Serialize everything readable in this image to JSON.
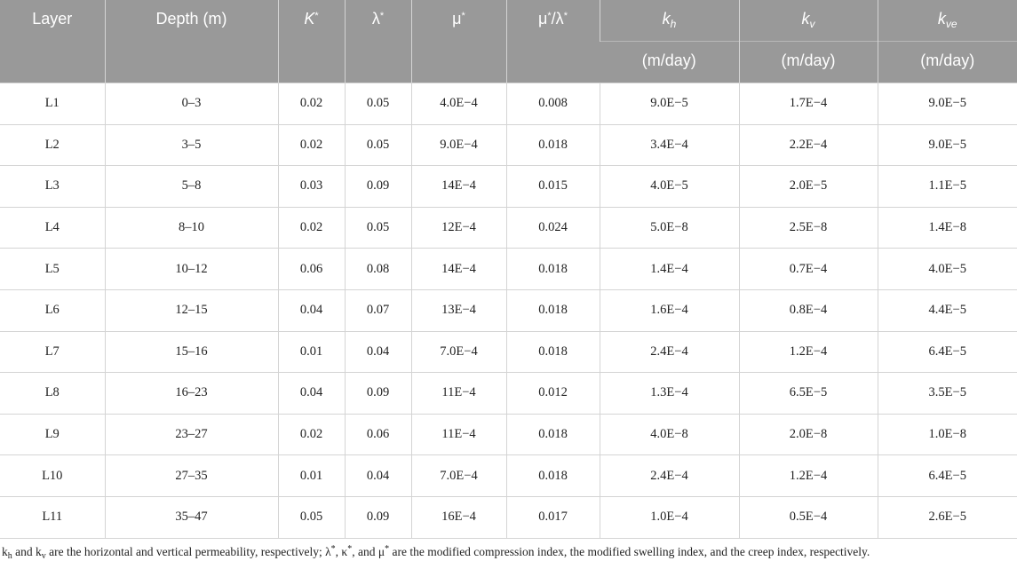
{
  "table": {
    "header": [
      [
        "Layer"
      ],
      [
        "Depth (m)"
      ],
      [
        "K",
        "*"
      ],
      [
        "λ",
        "*"
      ],
      [
        "μ",
        "*"
      ],
      [
        "μ",
        "*",
        "/λ",
        "*"
      ],
      [
        "k",
        "h"
      ],
      [
        "k",
        "v"
      ],
      [
        "k",
        "ve"
      ]
    ],
    "units": [
      "(m/day)",
      "(m/day)",
      "(m/day)"
    ],
    "rows": [
      [
        "L1",
        "0–3",
        "0.02",
        "0.05",
        "4.0E−4",
        "0.008",
        "9.0E−5",
        "1.7E−4",
        "9.0E−5"
      ],
      [
        "L2",
        "3–5",
        "0.02",
        "0.05",
        "9.0E−4",
        "0.018",
        "3.4E−4",
        "2.2E−4",
        "9.0E−5"
      ],
      [
        "L3",
        "5–8",
        "0.03",
        "0.09",
        "14E−4",
        "0.015",
        "4.0E−5",
        "2.0E−5",
        "1.1E−5"
      ],
      [
        "L4",
        "8–10",
        "0.02",
        "0.05",
        "12E−4",
        "0.024",
        "5.0E−8",
        "2.5E−8",
        "1.4E−8"
      ],
      [
        "L5",
        "10–12",
        "0.06",
        "0.08",
        "14E−4",
        "0.018",
        "1.4E−4",
        "0.7E−4",
        "4.0E−5"
      ],
      [
        "L6",
        "12–15",
        "0.04",
        "0.07",
        "13E−4",
        "0.018",
        "1.6E−4",
        "0.8E−4",
        "4.4E−5"
      ],
      [
        "L7",
        "15–16",
        "0.01",
        "0.04",
        "7.0E−4",
        "0.018",
        "2.4E−4",
        "1.2E−4",
        "6.4E−5"
      ],
      [
        "L8",
        "16–23",
        "0.04",
        "0.09",
        "11E−4",
        "0.012",
        "1.3E−4",
        "6.5E−5",
        "3.5E−5"
      ],
      [
        "L9",
        "23–27",
        "0.02",
        "0.06",
        "11E−4",
        "0.018",
        "4.0E−8",
        "2.0E−8",
        "1.0E−8"
      ],
      [
        "L10",
        "27–35",
        "0.01",
        "0.04",
        "7.0E−4",
        "0.018",
        "2.4E−4",
        "1.2E−4",
        "6.4E−5"
      ],
      [
        "L11",
        "35–47",
        "0.05",
        "0.09",
        "16E−4",
        "0.017",
        "1.0E−4",
        "0.5E−4",
        "2.6E−5"
      ]
    ]
  },
  "footnote": [
    "k",
    "h",
    " and k",
    "v",
    " are the horizontal and vertical permeability, respectively; λ",
    "*",
    ", κ",
    "*",
    ", and μ",
    "*",
    " are the modified compression index, the modified swelling index, and the creep index, respectively."
  ]
}
